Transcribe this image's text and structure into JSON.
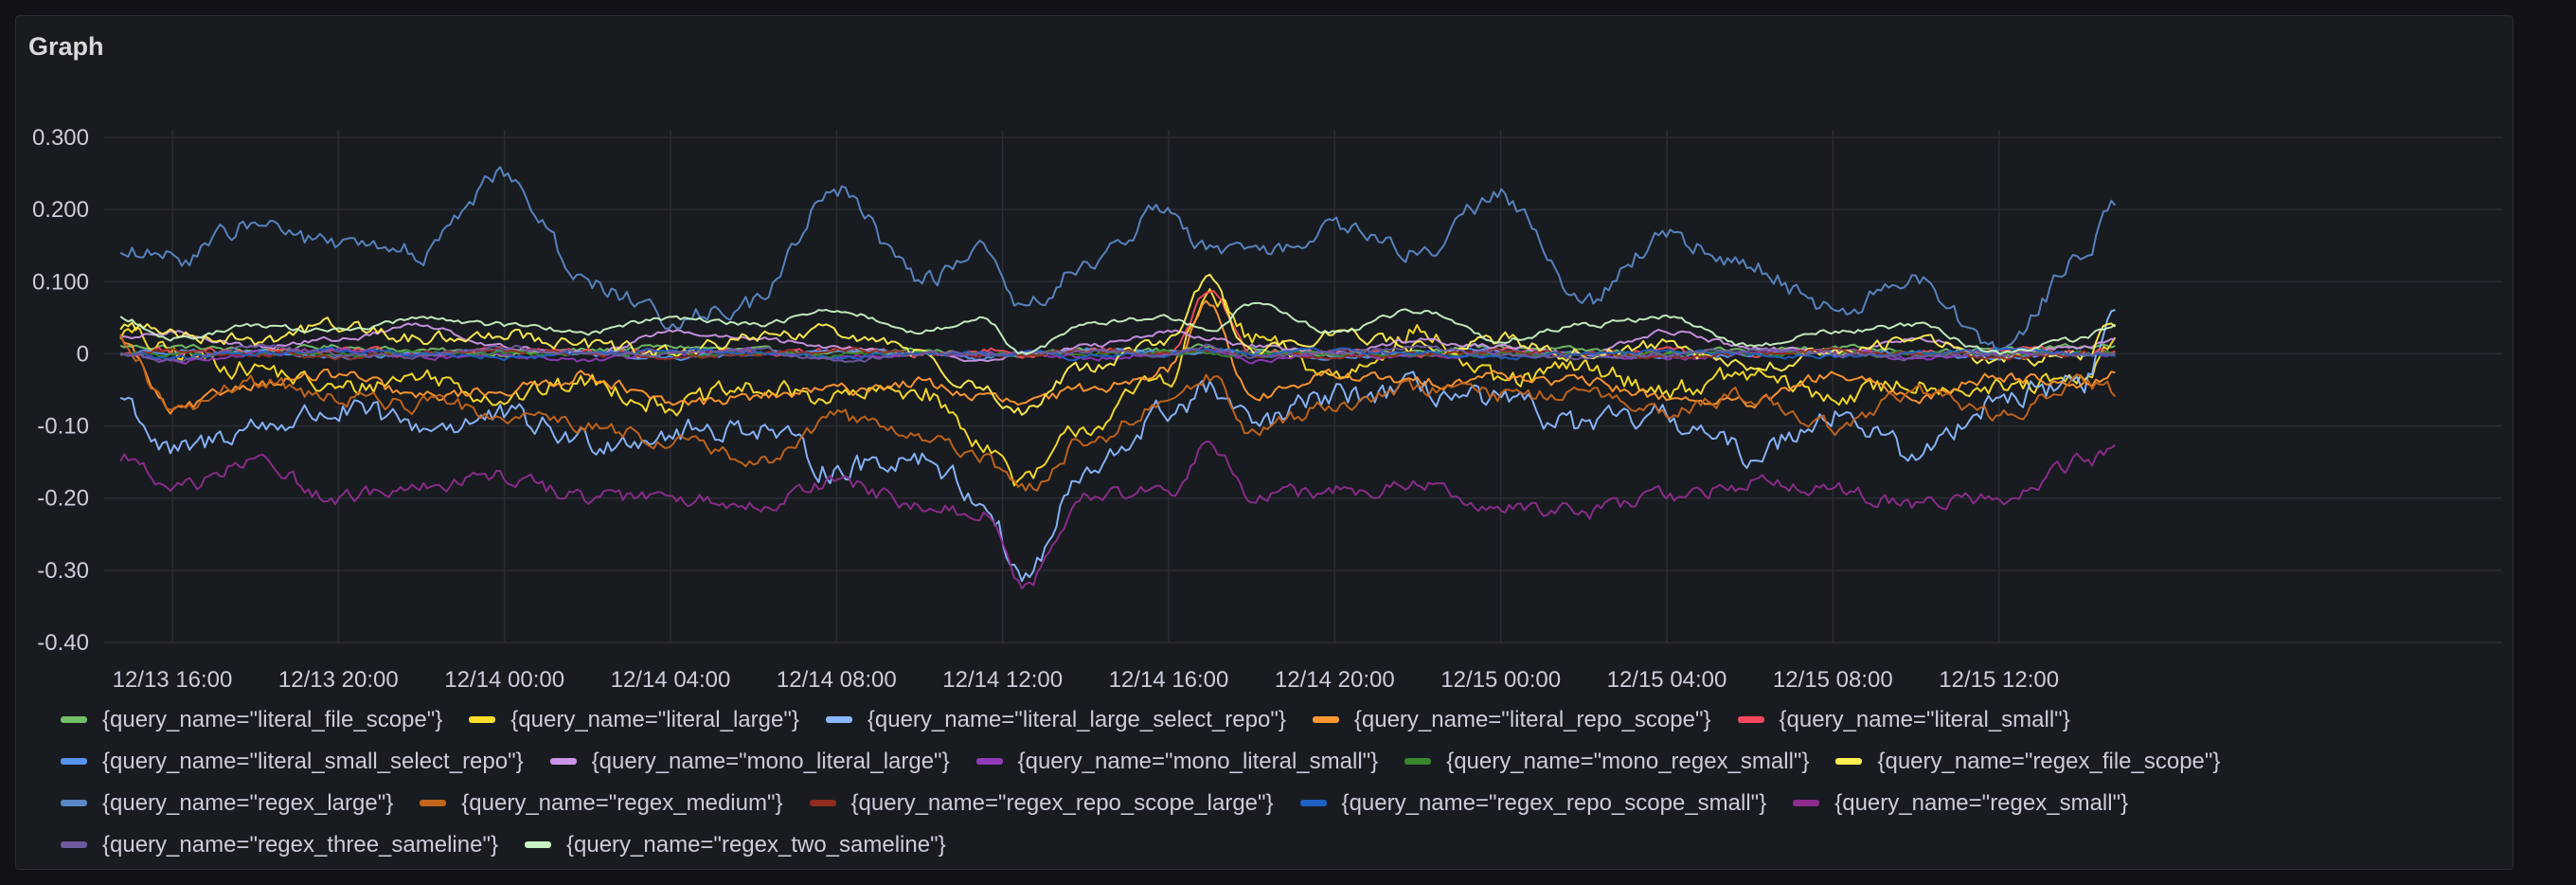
{
  "panel": {
    "title": "Graph"
  },
  "chart_data": {
    "type": "line",
    "title": "Graph",
    "xlabel": "",
    "ylabel": "",
    "ylim": [
      -0.42,
      0.31
    ],
    "xlim_hours": [
      -1.25,
      46.8
    ],
    "y_ticks": [
      {
        "value": 0.3,
        "label": "0.300"
      },
      {
        "value": 0.2,
        "label": "0.200"
      },
      {
        "value": 0.1,
        "label": "0.100"
      },
      {
        "value": 0.0,
        "label": "0"
      },
      {
        "value": -0.1,
        "label": "-0.10"
      },
      {
        "value": -0.2,
        "label": "-0.20"
      },
      {
        "value": -0.3,
        "label": "-0.30"
      },
      {
        "value": -0.4,
        "label": "-0.40"
      }
    ],
    "x_ticks": [
      {
        "hours": 0,
        "label": "12/13 16:00"
      },
      {
        "hours": 4,
        "label": "12/13 20:00"
      },
      {
        "hours": 8,
        "label": "12/14 00:00"
      },
      {
        "hours": 12,
        "label": "12/14 04:00"
      },
      {
        "hours": 16,
        "label": "12/14 08:00"
      },
      {
        "hours": 20,
        "label": "12/14 12:00"
      },
      {
        "hours": 24,
        "label": "12/14 16:00"
      },
      {
        "hours": 28,
        "label": "12/14 20:00"
      },
      {
        "hours": 32,
        "label": "12/15 00:00"
      },
      {
        "hours": 36,
        "label": "12/15 04:00"
      },
      {
        "hours": 40,
        "label": "12/15 08:00"
      },
      {
        "hours": 44,
        "label": "12/15 12:00"
      }
    ],
    "x_hours": [
      -1.25,
      0,
      2,
      4,
      6,
      8,
      10,
      12,
      14,
      16,
      18,
      19.5,
      20.5,
      22,
      24,
      25,
      26,
      28,
      30,
      32,
      34,
      36,
      38,
      40,
      42,
      44,
      46,
      46.8
    ],
    "series": [
      {
        "name": "{query_name=\"literal_file_scope\"}",
        "color": "#73bf69",
        "values": [
          0.01,
          0.01,
          0.005,
          0.01,
          0.005,
          0.0,
          0.005,
          0.01,
          0.005,
          0.0,
          0.005,
          0.0,
          0.0,
          0.005,
          0.005,
          0.01,
          0.005,
          0.0,
          0.005,
          0.01,
          0.005,
          0.0,
          0.005,
          0.01,
          0.005,
          0.005,
          0.01,
          0.01
        ]
      },
      {
        "name": "{query_name=\"literal_large\"}",
        "color": "#fade2a",
        "values": [
          0.03,
          0.0,
          -0.02,
          -0.05,
          -0.03,
          -0.06,
          -0.04,
          -0.07,
          -0.05,
          -0.06,
          -0.05,
          -0.12,
          -0.18,
          -0.1,
          -0.03,
          0.08,
          0.02,
          -0.03,
          0.03,
          -0.04,
          -0.02,
          -0.05,
          -0.03,
          -0.06,
          -0.04,
          -0.05,
          -0.04,
          0.02
        ]
      },
      {
        "name": "{query_name=\"literal_large_select_repo\"}",
        "color": "#8ab8ff",
        "values": [
          -0.06,
          -0.14,
          -0.1,
          -0.08,
          -0.1,
          -0.09,
          -0.12,
          -0.11,
          -0.1,
          -0.16,
          -0.14,
          -0.2,
          -0.31,
          -0.17,
          -0.08,
          -0.05,
          -0.1,
          -0.06,
          -0.05,
          -0.07,
          -0.1,
          -0.09,
          -0.14,
          -0.08,
          -0.14,
          -0.06,
          -0.04,
          0.05
        ]
      },
      {
        "name": "{query_name=\"literal_repo_scope\"}",
        "color": "#ff9830",
        "values": [
          0.02,
          -0.08,
          -0.04,
          -0.03,
          -0.06,
          -0.05,
          -0.03,
          -0.07,
          -0.06,
          -0.05,
          -0.04,
          -0.06,
          -0.07,
          -0.05,
          -0.02,
          0.07,
          -0.06,
          -0.03,
          -0.04,
          -0.03,
          -0.04,
          -0.06,
          -0.07,
          -0.03,
          -0.06,
          -0.03,
          -0.04,
          -0.03
        ]
      },
      {
        "name": "{query_name=\"literal_small\"}",
        "color": "#f2495c",
        "values": [
          0.0,
          0.005,
          0.0,
          0.005,
          0.0,
          0.005,
          0.0,
          0.005,
          0.0,
          0.005,
          0.0,
          0.005,
          0.0,
          0.005,
          0.0,
          0.09,
          0.0,
          0.005,
          0.0,
          0.005,
          0.0,
          0.005,
          0.0,
          0.005,
          0.0,
          0.005,
          0.0,
          0.005
        ]
      },
      {
        "name": "{query_name=\"literal_small_select_repo\"}",
        "color": "#5794f2",
        "values": [
          0.0,
          0.005,
          0.0,
          -0.005,
          0.0,
          0.005,
          0.0,
          -0.005,
          0.0,
          0.005,
          0.0,
          -0.005,
          0.0,
          0.005,
          0.0,
          0.005,
          0.0,
          -0.005,
          0.0,
          0.005,
          0.0,
          -0.005,
          0.0,
          0.005,
          0.0,
          -0.005,
          0.0,
          0.0
        ]
      },
      {
        "name": "{query_name=\"mono_literal_large\"}",
        "color": "#ca95e5",
        "values": [
          0.02,
          0.03,
          0.01,
          0.02,
          0.04,
          0.01,
          0.0,
          0.03,
          0.02,
          0.01,
          0.0,
          -0.01,
          0.0,
          0.01,
          0.03,
          0.02,
          0.01,
          0.0,
          0.02,
          0.01,
          0.0,
          0.03,
          0.01,
          0.0,
          0.02,
          0.0,
          0.01,
          0.02
        ]
      },
      {
        "name": "{query_name=\"mono_literal_small\"}",
        "color": "#8f3bb8",
        "values": [
          0.0,
          -0.01,
          0.0,
          0.005,
          -0.005,
          0.0,
          -0.01,
          0.0,
          0.005,
          -0.005,
          0.0,
          0.0,
          0.0,
          -0.005,
          0.0,
          0.005,
          -0.01,
          0.0,
          -0.005,
          0.0,
          0.0,
          -0.005,
          0.0,
          0.005,
          -0.005,
          0.0,
          0.0,
          0.0
        ]
      },
      {
        "name": "{query_name=\"mono_regex_small\"}",
        "color": "#37872d",
        "values": [
          0.0,
          0.0,
          0.0,
          0.0,
          0.0,
          0.0,
          0.0,
          0.0,
          0.0,
          0.0,
          0.0,
          0.0,
          0.0,
          0.0,
          0.0,
          0.0,
          0.0,
          0.0,
          0.0,
          0.0,
          0.0,
          0.0,
          0.0,
          0.0,
          0.0,
          0.0,
          0.0,
          0.0
        ]
      },
      {
        "name": "{query_name=\"regex_file_scope\"}",
        "color": "#ffee52",
        "values": [
          0.04,
          0.03,
          0.02,
          0.04,
          0.02,
          0.03,
          0.01,
          0.0,
          0.02,
          0.03,
          0.0,
          -0.05,
          -0.08,
          -0.02,
          0.02,
          0.1,
          0.0,
          0.03,
          0.01,
          0.02,
          0.0,
          0.01,
          -0.02,
          0.0,
          0.02,
          -0.01,
          0.0,
          0.04
        ]
      },
      {
        "name": "{query_name=\"regex_large\"}",
        "color": "#5a87c6",
        "values": [
          0.14,
          0.13,
          0.18,
          0.15,
          0.14,
          0.25,
          0.1,
          0.05,
          0.07,
          0.23,
          0.1,
          0.14,
          0.07,
          0.12,
          0.2,
          0.14,
          0.14,
          0.17,
          0.14,
          0.22,
          0.07,
          0.16,
          0.12,
          0.06,
          0.1,
          0.0,
          0.13,
          0.21
        ]
      },
      {
        "name": "{query_name=\"regex_medium\"}",
        "color": "#c4651c",
        "values": [
          0.02,
          -0.08,
          -0.04,
          -0.06,
          -0.07,
          -0.08,
          -0.1,
          -0.12,
          -0.15,
          -0.09,
          -0.11,
          -0.15,
          -0.19,
          -0.12,
          -0.07,
          -0.03,
          -0.11,
          -0.07,
          -0.05,
          -0.06,
          -0.05,
          -0.08,
          -0.06,
          -0.1,
          -0.05,
          -0.09,
          -0.04,
          -0.05
        ]
      },
      {
        "name": "{query_name=\"regex_repo_scope_large\"}",
        "color": "#8f2d1f",
        "values": [
          0.0,
          0.005,
          0.0,
          -0.005,
          0.0,
          0.005,
          0.0,
          -0.005,
          0.0,
          0.005,
          0.0,
          0.0,
          0.0,
          0.005,
          0.0,
          0.005,
          0.0,
          -0.005,
          0.0,
          0.005,
          0.0,
          -0.005,
          0.0,
          0.005,
          0.0,
          -0.005,
          0.0,
          0.0
        ]
      },
      {
        "name": "{query_name=\"regex_repo_scope_small\"}",
        "color": "#1f60c4",
        "values": [
          0.0,
          -0.005,
          0.0,
          0.005,
          0.0,
          -0.005,
          0.0,
          0.005,
          0.0,
          -0.005,
          0.0,
          0.0,
          0.0,
          -0.005,
          0.0,
          0.005,
          0.0,
          0.005,
          0.0,
          -0.005,
          0.0,
          0.005,
          0.0,
          -0.005,
          0.0,
          0.005,
          0.0,
          0.0
        ]
      },
      {
        "name": "{query_name=\"regex_small\"}",
        "color": "#8e2c8e",
        "values": [
          -0.14,
          -0.19,
          -0.15,
          -0.2,
          -0.18,
          -0.17,
          -0.2,
          -0.2,
          -0.21,
          -0.18,
          -0.21,
          -0.22,
          -0.32,
          -0.2,
          -0.19,
          -0.12,
          -0.2,
          -0.19,
          -0.18,
          -0.21,
          -0.22,
          -0.2,
          -0.18,
          -0.19,
          -0.21,
          -0.2,
          -0.15,
          -0.14
        ]
      },
      {
        "name": "{query_name=\"regex_three_sameline\"}",
        "color": "#6e5a9e",
        "values": [
          0.0,
          -0.01,
          0.01,
          0.0,
          -0.005,
          0.01,
          0.0,
          0.0,
          0.005,
          -0.01,
          0.0,
          0.0,
          0.0,
          0.005,
          0.0,
          0.01,
          -0.005,
          0.0,
          0.01,
          0.0,
          -0.005,
          0.0,
          0.005,
          0.0,
          -0.005,
          0.0,
          0.0,
          0.0
        ]
      },
      {
        "name": "{query_name=\"regex_two_sameline\"}",
        "color": "#c8f2c2",
        "values": [
          0.05,
          0.02,
          0.04,
          0.03,
          0.05,
          0.04,
          0.03,
          0.05,
          0.04,
          0.06,
          0.03,
          0.05,
          0.0,
          0.04,
          0.05,
          0.03,
          0.07,
          0.03,
          0.06,
          0.02,
          0.04,
          0.05,
          0.01,
          0.03,
          0.04,
          0.0,
          0.02,
          0.04
        ]
      }
    ]
  }
}
